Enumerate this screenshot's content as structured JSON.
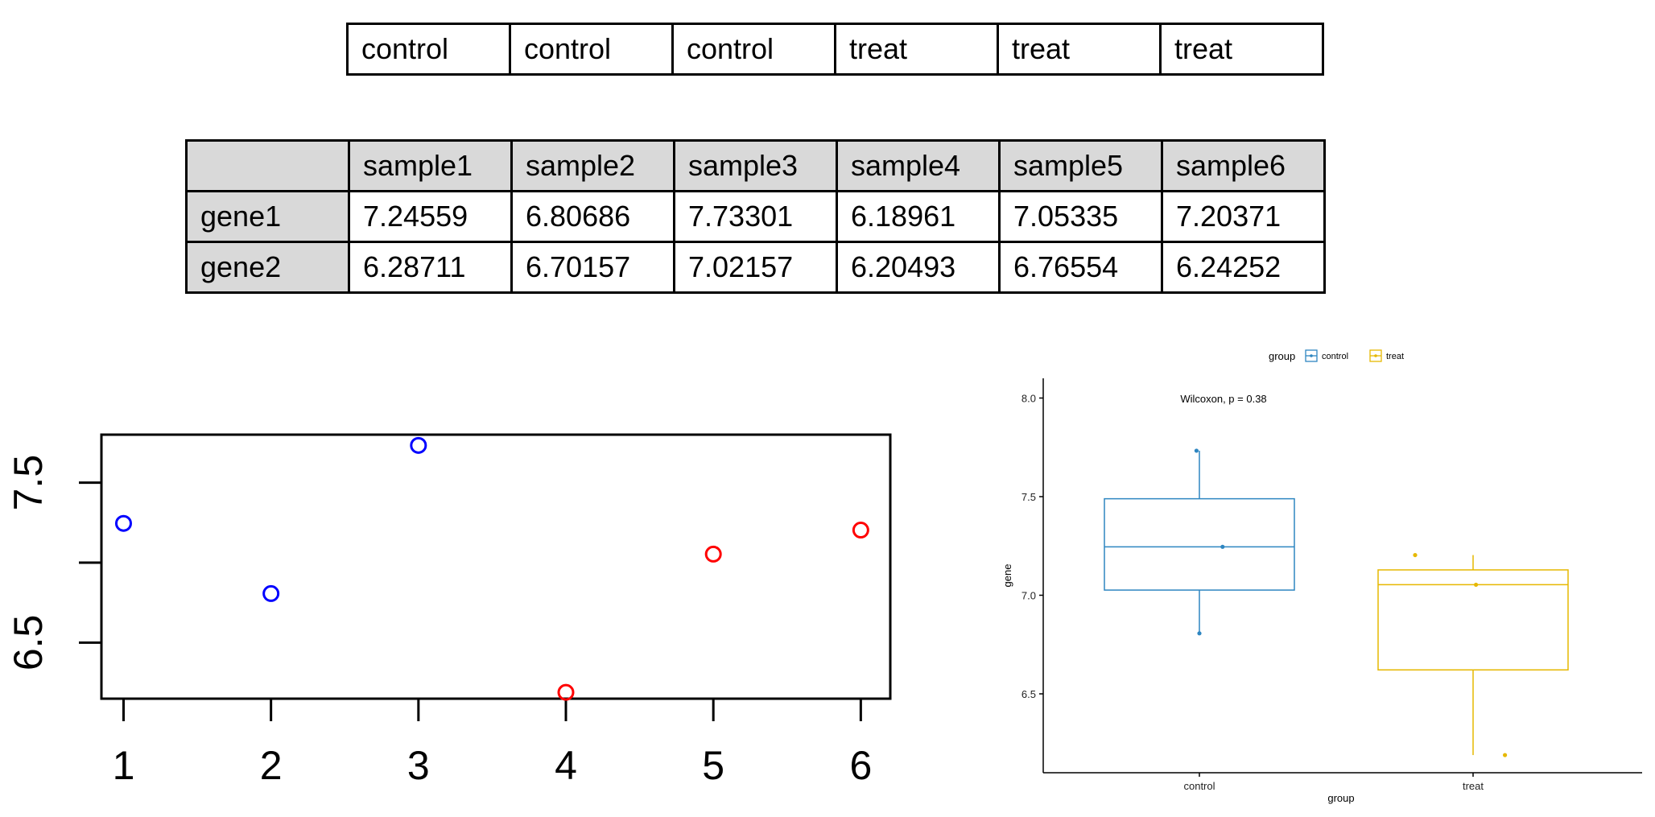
{
  "group_table": [
    "control",
    "control",
    "control",
    "treat",
    "treat",
    "treat"
  ],
  "expr_table": {
    "corner": "",
    "columns": [
      "sample1",
      "sample2",
      "sample3",
      "sample4",
      "sample5",
      "sample6"
    ],
    "rows": [
      {
        "name": "gene1",
        "values": [
          "7.24559",
          "6.80686",
          "7.73301",
          "6.18961",
          "7.05335",
          "7.20371"
        ]
      },
      {
        "name": "gene2",
        "values": [
          "6.28711",
          "6.70157",
          "7.02157",
          "6.20493",
          "6.76554",
          "6.24252"
        ]
      }
    ]
  },
  "chart_data": [
    {
      "type": "scatter",
      "title": "",
      "xlabel": "",
      "ylabel": "",
      "x": [
        1,
        2,
        3,
        4,
        5,
        6
      ],
      "y": [
        7.24559,
        6.80686,
        7.73301,
        6.18961,
        7.05335,
        7.20371
      ],
      "point_colors": [
        "#0000ff",
        "#0000ff",
        "#0000ff",
        "#ff0000",
        "#ff0000",
        "#ff0000"
      ],
      "xticks": [
        "1",
        "2",
        "3",
        "4",
        "5",
        "6"
      ],
      "yticks": [
        {
          "value": 6.5,
          "label": "6.5"
        },
        {
          "value": 7.0,
          "label": ""
        },
        {
          "value": 7.5,
          "label": "7.5"
        }
      ],
      "xlim": [
        0.85,
        6.2
      ],
      "ylim": [
        6.15,
        7.8
      ],
      "grid": false
    },
    {
      "type": "box",
      "title": "",
      "annotation": "Wilcoxon, p = 0.38",
      "xlabel": "group",
      "ylabel": "gene",
      "legend_title": "group",
      "legend_position": "top",
      "categories": [
        "control",
        "treat"
      ],
      "colors": [
        "#2e86c1",
        "#e6b800"
      ],
      "boxes": [
        {
          "name": "control",
          "min": 6.80686,
          "q1": 7.02622,
          "median": 7.24559,
          "q3": 7.4893,
          "max": 7.73301,
          "points": [
            7.24559,
            6.80686,
            7.73301
          ]
        },
        {
          "name": "treat",
          "min": 6.18961,
          "q1": 6.62148,
          "median": 7.05335,
          "q3": 7.12853,
          "max": 7.20371,
          "points": [
            6.18961,
            7.05335,
            7.20371
          ]
        }
      ],
      "yticks": [
        6.5,
        7.0,
        7.5,
        8.0
      ],
      "ytick_labels": [
        "6.5",
        "7.0",
        "7.5",
        "8.0"
      ],
      "ylim": [
        6.1,
        8.1
      ],
      "grid": false
    }
  ]
}
